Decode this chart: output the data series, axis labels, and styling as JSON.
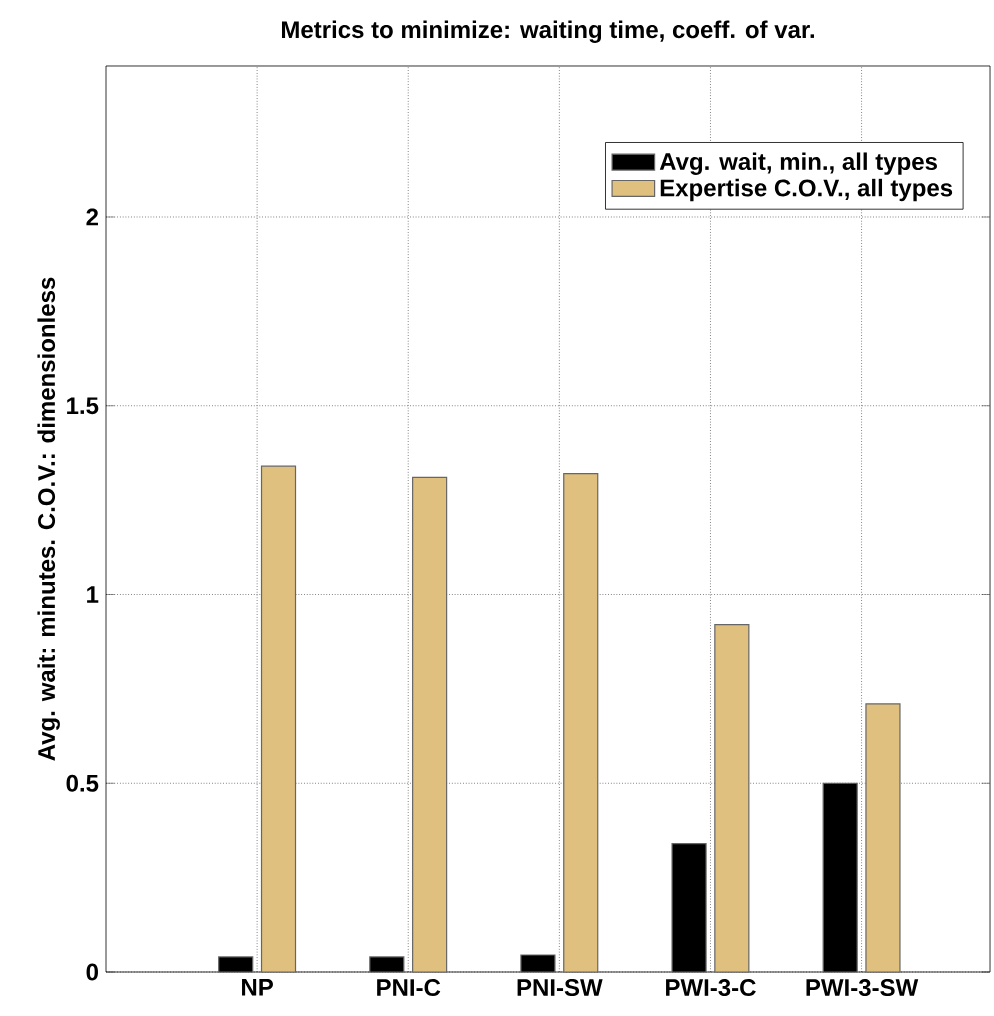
{
  "chart_data": {
    "type": "bar",
    "title": "Metrics to minimize:  waiting time, coeff. of var.",
    "ylabel": "Avg. wait: minutes.  C.O.V.: dimensionless",
    "categories": [
      "NP",
      "PNI-C",
      "PNI-SW",
      "PWI-3-C",
      "PWI-3-SW"
    ],
    "series": [
      {
        "name": "Avg. wait, min., all types",
        "color": "#000000",
        "values": [
          0.04,
          0.04,
          0.045,
          0.34,
          0.5
        ]
      },
      {
        "name": "Expertise C.O.V., all types",
        "color": "#dfc07f",
        "values": [
          1.34,
          1.31,
          1.32,
          0.92,
          0.71
        ]
      }
    ],
    "ylim": [
      0,
      2.4
    ],
    "yticks": [
      0,
      0.5,
      1,
      1.5,
      2
    ],
    "grid": true,
    "legend": "top right"
  }
}
